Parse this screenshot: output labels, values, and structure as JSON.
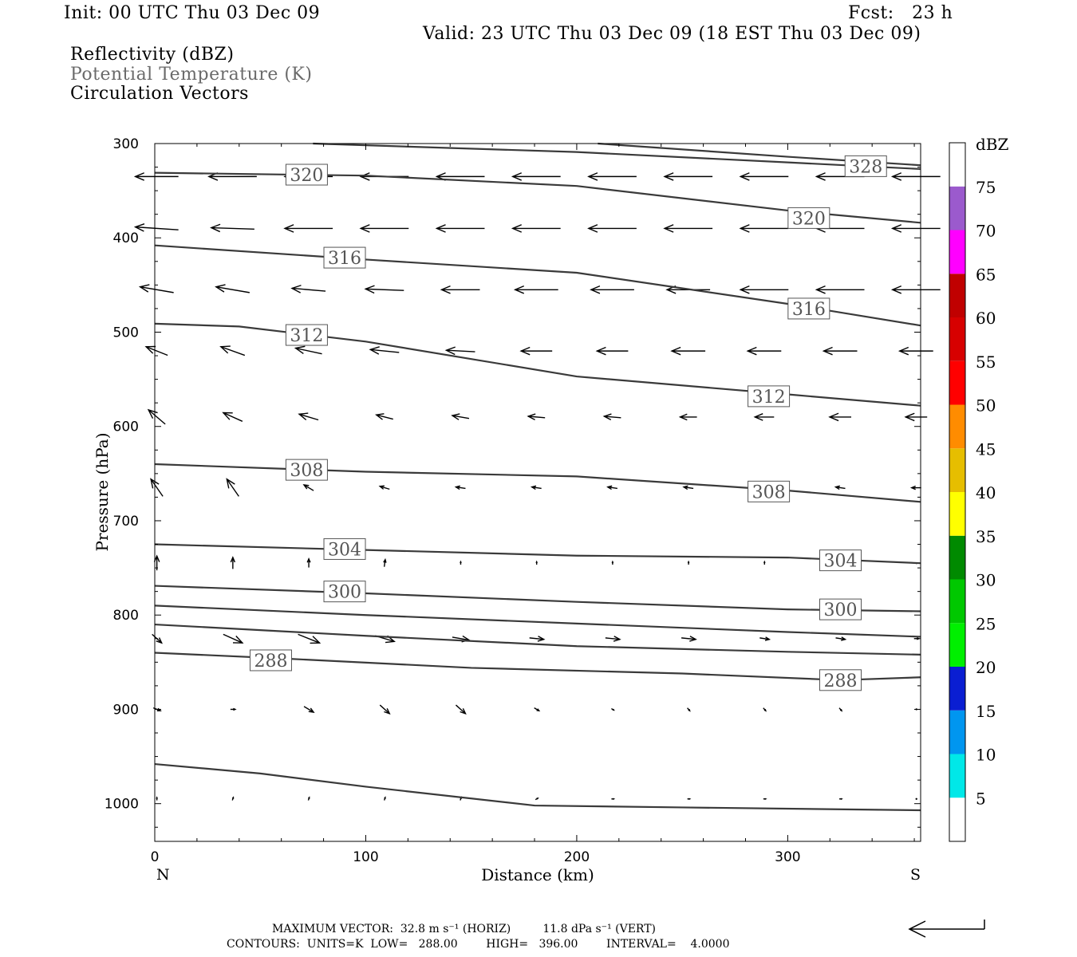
{
  "header": {
    "init": "Init: 00 UTC Thu 03 Dec 09",
    "fcst": "Fcst:   23 h",
    "valid": "Valid: 23 UTC Thu 03 Dec 09 (18 EST Thu 03 Dec 09)",
    "field1": "Reflectivity (dBZ)",
    "field2": "Potential Temperature (K)",
    "field3": "Circulation Vectors"
  },
  "chart_data": {
    "type": "cross-section",
    "xlabel": "Distance (km)",
    "ylabel": "Pressure (hPa)",
    "xlim": [
      0,
      363
    ],
    "ylim": [
      1040,
      300
    ],
    "xticks": [
      0,
      100,
      200,
      300
    ],
    "yticks": [
      300,
      400,
      500,
      600,
      700,
      800,
      900,
      1000
    ],
    "left_end_label": "N",
    "right_end_label": "S",
    "contours": [
      {
        "level": "328",
        "labelled": true,
        "points": [
          [
            75,
            300
          ],
          [
            200,
            309
          ],
          [
            300,
            320
          ],
          [
            363,
            327
          ]
        ],
        "label_at": [
          337,
          324
        ]
      },
      {
        "level": "324",
        "labelled": false,
        "points": [
          [
            210,
            300
          ],
          [
            300,
            314
          ],
          [
            363,
            323
          ]
        ]
      },
      {
        "level": "320",
        "labelled": true,
        "points": [
          [
            0,
            331
          ],
          [
            100,
            334
          ],
          [
            200,
            345
          ],
          [
            300,
            371
          ],
          [
            363,
            384
          ]
        ],
        "label_at": [
          72,
          333
        ],
        "label_at2": [
          310,
          379
        ]
      },
      {
        "level": "316",
        "labelled": true,
        "points": [
          [
            0,
            408
          ],
          [
            100,
            423
          ],
          [
            200,
            437
          ],
          [
            300,
            470
          ],
          [
            363,
            493
          ]
        ],
        "label_at": [
          90,
          421
        ],
        "label_at2": [
          310,
          475
        ]
      },
      {
        "level": "312",
        "labelled": true,
        "points": [
          [
            0,
            491
          ],
          [
            40,
            494
          ],
          [
            100,
            510
          ],
          [
            200,
            547
          ],
          [
            300,
            566
          ],
          [
            363,
            578
          ]
        ],
        "label_at": [
          72,
          503
        ],
        "label_at2": [
          291,
          568
        ]
      },
      {
        "level": "308",
        "labelled": true,
        "points": [
          [
            0,
            640
          ],
          [
            100,
            648
          ],
          [
            200,
            653
          ],
          [
            300,
            668
          ],
          [
            363,
            680
          ]
        ],
        "label_at": [
          72,
          646
        ],
        "label_at2": [
          291,
          669
        ]
      },
      {
        "level": "304",
        "labelled": true,
        "points": [
          [
            0,
            725
          ],
          [
            100,
            731
          ],
          [
            200,
            737
          ],
          [
            300,
            739
          ],
          [
            363,
            745
          ]
        ],
        "label_at": [
          90,
          730
        ],
        "label_at2": [
          325,
          742
        ]
      },
      {
        "level": "300",
        "labelled": true,
        "points": [
          [
            0,
            769
          ],
          [
            100,
            777
          ],
          [
            200,
            786
          ],
          [
            300,
            794
          ],
          [
            363,
            796
          ]
        ],
        "label_at": [
          90,
          775
        ],
        "label_at2": [
          325,
          794
        ]
      },
      {
        "level": "296",
        "labelled": false,
        "points": [
          [
            0,
            790
          ],
          [
            100,
            800
          ],
          [
            200,
            809
          ],
          [
            300,
            818
          ],
          [
            363,
            823
          ]
        ]
      },
      {
        "level": "292",
        "labelled": false,
        "points": [
          [
            0,
            810
          ],
          [
            100,
            822
          ],
          [
            200,
            833
          ],
          [
            300,
            839
          ],
          [
            363,
            842
          ]
        ]
      },
      {
        "level": "288",
        "labelled": true,
        "points": [
          [
            0,
            840
          ],
          [
            60,
            846
          ],
          [
            150,
            856
          ],
          [
            250,
            862
          ],
          [
            325,
            869
          ],
          [
            363,
            866
          ]
        ],
        "label_at": [
          55,
          848
        ],
        "label_at2": [
          325,
          869
        ]
      },
      {
        "level": "284",
        "labelled": false,
        "points": [
          [
            0,
            958
          ],
          [
            50,
            968
          ],
          [
            100,
            982
          ],
          [
            180,
            1002
          ],
          [
            250,
            1004
          ],
          [
            363,
            1007
          ]
        ]
      }
    ],
    "vectors": {
      "columns": [
        1,
        37,
        73,
        109,
        145,
        181,
        217,
        253,
        289,
        325,
        361
      ],
      "rows": [
        {
          "p": 335,
          "u": [
            -0.9,
            -1,
            -1,
            -1,
            -1,
            -1,
            -1,
            -1,
            -1,
            -1,
            -1
          ],
          "w": [
            0,
            0,
            0,
            0,
            0,
            0,
            0,
            0,
            0,
            0,
            0
          ]
        },
        {
          "p": 390,
          "u": [
            -0.9,
            -0.9,
            -1,
            -1,
            -1,
            -1,
            -1,
            -1,
            -1,
            -1,
            -1
          ],
          "w": [
            0.1,
            0.05,
            0,
            0,
            0,
            0,
            0,
            0,
            0,
            0,
            0
          ]
        },
        {
          "p": 455,
          "u": [
            -0.7,
            -0.7,
            -0.7,
            -0.8,
            -0.8,
            -0.9,
            -0.9,
            -0.9,
            -1,
            -1,
            -1
          ],
          "w": [
            0.2,
            0.2,
            0.1,
            0.05,
            0,
            0,
            0,
            0,
            0,
            0,
            0
          ]
        },
        {
          "p": 520,
          "u": [
            -0.45,
            -0.5,
            -0.55,
            -0.6,
            -0.6,
            -0.65,
            -0.65,
            -0.7,
            -0.7,
            -0.7,
            -0.7
          ],
          "w": [
            0.3,
            0.3,
            0.2,
            0.1,
            0.05,
            0,
            0,
            0,
            0,
            0,
            0
          ]
        },
        {
          "p": 590,
          "u": [
            -0.35,
            -0.4,
            -0.4,
            -0.35,
            -0.35,
            -0.35,
            -0.35,
            -0.35,
            -0.4,
            -0.45,
            -0.45
          ],
          "w": [
            0.5,
            0.3,
            0.2,
            0.15,
            0.1,
            0.05,
            0.05,
            0,
            0,
            0,
            0
          ]
        },
        {
          "p": 665,
          "u": [
            -0.25,
            -0.25,
            -0.2,
            -0.2,
            -0.2,
            -0.2,
            -0.2,
            -0.2,
            -0.2,
            -0.2,
            -0.2
          ],
          "w": [
            0.6,
            0.6,
            0.2,
            0.1,
            0.05,
            0.05,
            0.05,
            0.05,
            0,
            0.05,
            0
          ]
        },
        {
          "p": 745,
          "u": [
            0,
            0,
            0,
            0.02,
            0,
            0,
            0,
            0,
            0,
            0,
            0
          ],
          "w": [
            0.5,
            0.4,
            0.3,
            0.25,
            0.1,
            0.1,
            0.1,
            0.1,
            0.1,
            0.1,
            0
          ]
        },
        {
          "p": 825,
          "u": [
            0.2,
            0.4,
            0.45,
            0.4,
            0.35,
            0.3,
            0.3,
            0.3,
            0.2,
            0.2,
            0.1
          ],
          "w": [
            -0.3,
            -0.3,
            -0.3,
            -0.2,
            -0.1,
            -0.05,
            -0.05,
            -0.05,
            -0.05,
            -0.05,
            0
          ]
        },
        {
          "p": 900,
          "u": [
            0.15,
            0.1,
            0.2,
            0.2,
            0.2,
            0.1,
            0.05,
            0.05,
            0.05,
            0.05,
            0
          ],
          "w": [
            -0.1,
            0,
            -0.2,
            -0.3,
            -0.3,
            -0.1,
            -0.05,
            -0.1,
            -0.1,
            -0.1,
            0
          ]
        },
        {
          "p": 995,
          "u": [
            0,
            0.02,
            0.02,
            0.02,
            0.02,
            0.05,
            0.05,
            0.05,
            0.05,
            0.05,
            0
          ],
          "w": [
            0.1,
            0.1,
            0.1,
            0.1,
            0.1,
            0.05,
            0,
            0,
            0,
            0,
            0
          ]
        }
      ]
    },
    "colorbar": {
      "title": "dBZ",
      "levels": [
        "5",
        "10",
        "15",
        "20",
        "25",
        "30",
        "35",
        "40",
        "45",
        "50",
        "55",
        "60",
        "65",
        "70",
        "75"
      ],
      "colors": [
        "#ffffff",
        "#00e8e8",
        "#0096f0",
        "#0a1ed2",
        "#00f000",
        "#00c800",
        "#008a00",
        "#ffff00",
        "#e6be00",
        "#ff8c00",
        "#ff0000",
        "#d70000",
        "#c00000",
        "#ff00ff",
        "#9b5acd",
        "#ffffff"
      ]
    }
  },
  "footer": {
    "line1": "MAXIMUM VECTOR:  32.8 m s⁻¹ (HORIZ)         11.8 dPa s⁻¹ (VERT)",
    "line2": "CONTOURS:  UNITS=K  LOW=   288.00        HIGH=   396.00        INTERVAL=    4.0000"
  }
}
